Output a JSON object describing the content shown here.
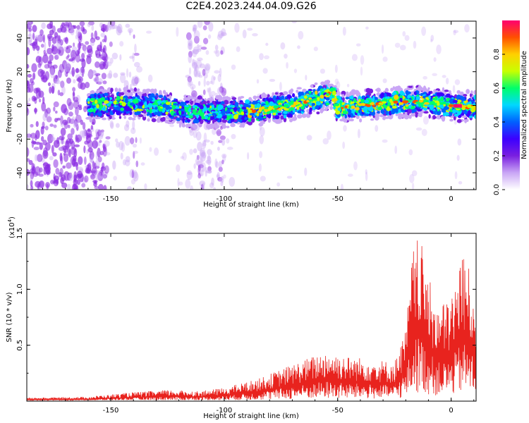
{
  "title": "C2E4.2023.244.04.09.G26",
  "chart_data": [
    {
      "type": "heatmap",
      "title": "C2E4.2023.244.04.09.G26",
      "xlabel": "Height of straight line (km)",
      "ylabel": "Frequency (Hz)",
      "xlim": [
        -187,
        11
      ],
      "ylim": [
        -50,
        50
      ],
      "xticks": [
        -150,
        -100,
        -50,
        0
      ],
      "yticks": [
        -40,
        -20,
        0,
        20,
        40
      ],
      "colorbar": {
        "label": "Normalized spectral amplitude",
        "range": [
          0,
          1
        ],
        "ticks": [
          "0.0",
          "0.2",
          "0.4",
          "0.6",
          "0.8"
        ],
        "colors": [
          "#ffffff",
          "#c9a6f5",
          "#7a1fe0",
          "#3c00ff",
          "#0060ff",
          "#00d8ff",
          "#00ff6a",
          "#c8ff00",
          "#ffd000",
          "#ff5000",
          "#ff0070"
        ]
      },
      "ridge": {
        "description_points": [
          {
            "x": -160,
            "y": 0
          },
          {
            "x": -145,
            "y": 1
          },
          {
            "x": -130,
            "y": 0
          },
          {
            "x": -115,
            "y": -4
          },
          {
            "x": -100,
            "y": -4
          },
          {
            "x": -85,
            "y": -3
          },
          {
            "x": -70,
            "y": 0
          },
          {
            "x": -60,
            "y": 4
          },
          {
            "x": -52,
            "y": 7
          },
          {
            "x": -50,
            "y": -1
          },
          {
            "x": -40,
            "y": 0
          },
          {
            "x": -30,
            "y": 1
          },
          {
            "x": -20,
            "y": 2
          },
          {
            "x": -12,
            "y": 2
          },
          {
            "x": -5,
            "y": 1
          },
          {
            "x": 0,
            "y": 0
          },
          {
            "x": 10,
            "y": -1
          }
        ],
        "peak_amplitude": 0.95
      }
    },
    {
      "type": "line",
      "xlabel": "Height of straight line (km)",
      "ylabel": "SNR (10 * v/v)",
      "multiplier_label": "(x10",
      "multiplier_exp": "4",
      "xlim": [
        -187,
        11
      ],
      "ylim": [
        0,
        1.5
      ],
      "xticks": [
        -150,
        -100,
        -50,
        0
      ],
      "yticks": [
        "0.5",
        "1.0",
        "1.5"
      ],
      "color": "#e8231e",
      "envelope": [
        {
          "x": -187,
          "y": 0.03
        },
        {
          "x": -160,
          "y": 0.04
        },
        {
          "x": -140,
          "y": 0.08
        },
        {
          "x": -125,
          "y": 0.1
        },
        {
          "x": -110,
          "y": 0.09
        },
        {
          "x": -100,
          "y": 0.12
        },
        {
          "x": -85,
          "y": 0.2
        },
        {
          "x": -70,
          "y": 0.33
        },
        {
          "x": -55,
          "y": 0.45
        },
        {
          "x": -45,
          "y": 0.4
        },
        {
          "x": -35,
          "y": 0.38
        },
        {
          "x": -25,
          "y": 0.35
        },
        {
          "x": -20,
          "y": 0.65
        },
        {
          "x": -17,
          "y": 1.35
        },
        {
          "x": -14,
          "y": 1.5
        },
        {
          "x": -10,
          "y": 1.1
        },
        {
          "x": -5,
          "y": 0.85
        },
        {
          "x": 0,
          "y": 0.95
        },
        {
          "x": 5,
          "y": 1.35
        },
        {
          "x": 11,
          "y": 1.0
        }
      ]
    }
  ]
}
